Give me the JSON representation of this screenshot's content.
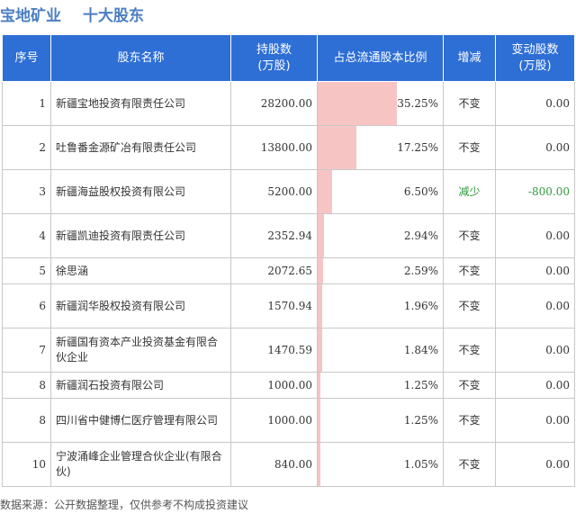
{
  "title": {
    "company": "宝地矿业",
    "subtitle": "十大股东"
  },
  "table": {
    "headers": {
      "seq": "序号",
      "name": "股东名称",
      "shares": [
        "持股数",
        "(万股)"
      ],
      "ratio": "占总流通股本比例",
      "change_dir": "增减",
      "change": [
        "变动股数",
        "(万股)"
      ]
    },
    "rows": [
      {
        "seq": "1",
        "name": "新疆宝地投资有限责任公司",
        "shares": "28200.00",
        "ratio": "35.25%",
        "ratio_value": 35.25,
        "change_dir": "不变",
        "change": "0.00"
      },
      {
        "seq": "2",
        "name": "吐鲁番金源矿冶有限责任公司",
        "shares": "13800.00",
        "ratio": "17.25%",
        "ratio_value": 17.25,
        "change_dir": "不变",
        "change": "0.00"
      },
      {
        "seq": "3",
        "name": "新疆海益股权投资有限公司",
        "shares": "5200.00",
        "ratio": "6.50%",
        "ratio_value": 6.5,
        "change_dir": "减少",
        "change": "-800.00"
      },
      {
        "seq": "4",
        "name": "新疆凯迪投资有限责任公司",
        "shares": "2352.94",
        "ratio": "2.94%",
        "ratio_value": 2.94,
        "change_dir": "不变",
        "change": "0.00"
      },
      {
        "seq": "5",
        "name": "徐思涵",
        "shares": "2072.65",
        "ratio": "2.59%",
        "ratio_value": 2.59,
        "change_dir": "不变",
        "change": "0.00"
      },
      {
        "seq": "6",
        "name": "新疆润华股权投资有限公司",
        "shares": "1570.94",
        "ratio": "1.96%",
        "ratio_value": 1.96,
        "change_dir": "不变",
        "change": "0.00"
      },
      {
        "seq": "7",
        "name": "新疆国有资本产业投资基金有限合伙企业",
        "shares": "1470.59",
        "ratio": "1.84%",
        "ratio_value": 1.84,
        "change_dir": "不变",
        "change": "0.00"
      },
      {
        "seq": "8",
        "name": "新疆润石投资有限公司",
        "shares": "1000.00",
        "ratio": "1.25%",
        "ratio_value": 1.25,
        "change_dir": "不变",
        "change": "0.00"
      },
      {
        "seq": "8",
        "name": "四川省中健博仁医疗管理有限公司",
        "shares": "1000.00",
        "ratio": "1.25%",
        "ratio_value": 1.25,
        "change_dir": "不变",
        "change": "0.00"
      },
      {
        "seq": "10",
        "name": "宁波涌峰企业管理合伙企业(有限合伙)",
        "shares": "840.00",
        "ratio": "1.05%",
        "ratio_value": 1.05,
        "change_dir": "不变",
        "change": "0.00"
      }
    ]
  },
  "colors": {
    "header_bg": "#2e6fd6",
    "bar": "#f7c4c4",
    "decrease": "#2e9a3a",
    "title": "#4a7ec2"
  },
  "footer": "数据来源：公开数据整理，仅供参考不构成投资建议"
}
